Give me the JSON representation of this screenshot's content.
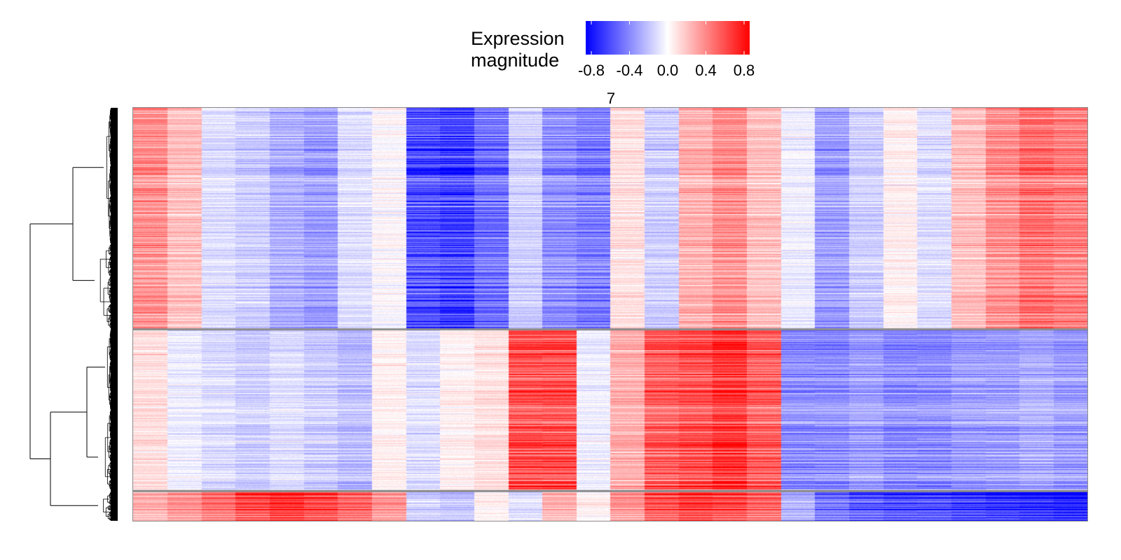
{
  "chart_data": {
    "type": "heatmap",
    "title": "7",
    "legend": {
      "title_lines": [
        "Expression",
        "magnitude"
      ],
      "ticks": [
        "-0.8",
        "-0.4",
        "0.0",
        "0.4",
        "0.8"
      ],
      "range": [
        -0.8,
        0.8
      ],
      "colors": {
        "low": "#0000ff",
        "mid": "#ffffff",
        "high": "#ff0000"
      },
      "placement": "top"
    },
    "row_dendrogram": true,
    "column_dendrogram": false,
    "row_clusters": [
      {
        "name": "",
        "rows_fraction": 0.54,
        "pattern": [
          0.35,
          0.2,
          -0.1,
          -0.15,
          -0.25,
          -0.3,
          -0.1,
          0.0,
          -0.55,
          -0.6,
          -0.45,
          -0.15,
          -0.35,
          -0.4,
          0.1,
          -0.15,
          0.25,
          0.35,
          0.2,
          -0.05,
          -0.3,
          -0.15,
          0.05,
          -0.1,
          0.2,
          0.35,
          0.45,
          0.4
        ]
      },
      {
        "name": "",
        "rows_fraction": 0.39,
        "pattern": [
          0.1,
          -0.05,
          -0.1,
          -0.15,
          -0.1,
          -0.15,
          -0.2,
          0.05,
          -0.1,
          0.05,
          0.1,
          0.55,
          0.55,
          -0.05,
          0.25,
          0.5,
          0.55,
          0.65,
          0.5,
          -0.35,
          -0.35,
          -0.3,
          -0.35,
          -0.35,
          -0.3,
          -0.3,
          -0.25,
          -0.3
        ]
      },
      {
        "name": "",
        "rows_fraction": 0.07,
        "pattern": [
          0.25,
          0.35,
          0.45,
          0.6,
          0.7,
          0.6,
          0.5,
          0.35,
          -0.15,
          -0.2,
          0.05,
          -0.1,
          0.25,
          0.05,
          0.35,
          0.55,
          0.65,
          0.6,
          0.5,
          -0.25,
          -0.45,
          -0.55,
          -0.6,
          -0.6,
          -0.65,
          -0.7,
          -0.75,
          -0.8
        ]
      }
    ]
  }
}
